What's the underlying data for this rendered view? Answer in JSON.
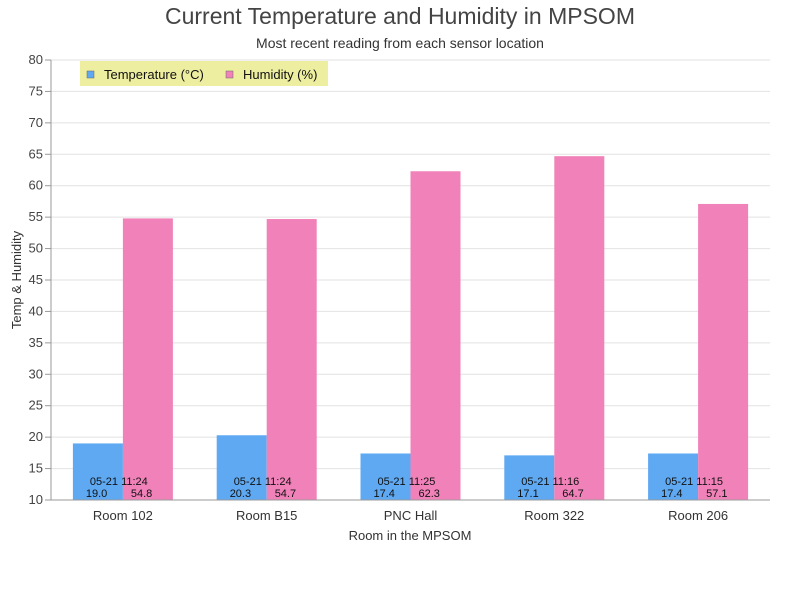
{
  "chart_data": {
    "type": "bar",
    "title": "Current Temperature and Humidity in MPSOM",
    "subtitle": "Most recent reading from each sensor location",
    "xlabel": "Room in the MPSOM",
    "ylabel": "Temp & Humidity",
    "ylim": [
      10,
      80
    ],
    "yticks": [
      10,
      15,
      20,
      25,
      30,
      35,
      40,
      45,
      50,
      55,
      60,
      65,
      70,
      75,
      80
    ],
    "grid": true,
    "legend_position": "top-left",
    "legend_bg": "#eeeea0",
    "categories": [
      "Room 102",
      "Room B15",
      "PNC Hall",
      "Room 322",
      "Room 206"
    ],
    "timestamps": [
      "05-21 11:24",
      "05-21 11:24",
      "05-21 11:25",
      "05-21 11:16",
      "05-21 11:15"
    ],
    "series": [
      {
        "name": "Temperature (°C)",
        "color": "#5ea9f2",
        "values": [
          19.0,
          20.3,
          17.4,
          17.1,
          17.4
        ],
        "labels": [
          "19.0",
          "20.3",
          "17.4",
          "17.1",
          "17.4"
        ]
      },
      {
        "name": "Humidity (%)",
        "color": "#f182b9",
        "values": [
          54.8,
          54.7,
          62.3,
          64.7,
          57.1
        ],
        "labels": [
          "54.8",
          "54.7",
          "62.3",
          "64.7",
          "57.1"
        ]
      }
    ]
  }
}
